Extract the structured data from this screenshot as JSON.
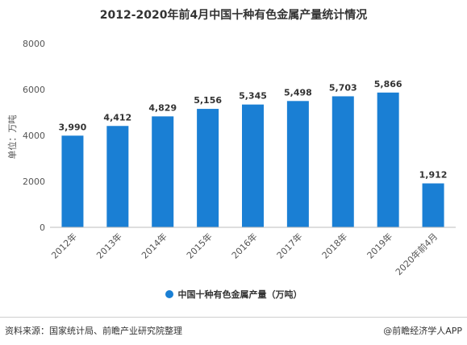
{
  "chart_data": {
    "type": "bar",
    "title": "2012-2020年前4月中国十种有色金属产量统计情况",
    "ylabel": "单位：万吨",
    "categories": [
      "2012年",
      "2013年",
      "2014年",
      "2015年",
      "2016年",
      "2017年",
      "2018年",
      "2019年",
      "2020年前4月"
    ],
    "values": [
      3990,
      4412,
      4829,
      5156,
      5345,
      5498,
      5703,
      5866,
      1912
    ],
    "data_labels": [
      "3,990",
      "4,412",
      "4,829",
      "5,156",
      "5,345",
      "5,498",
      "5,703",
      "5,866",
      "1,912"
    ],
    "yticks": [
      0,
      2000,
      4000,
      6000,
      8000
    ],
    "ylim": [
      0,
      8000
    ],
    "grid": false,
    "legend_position": "bottom",
    "series": [
      {
        "name": "中国十种有色金属产量（万吨）",
        "color": "#1a7fd4"
      }
    ]
  },
  "footer": {
    "source": "资料来源：国家统计局、前瞻产业研究院整理",
    "brand": "@前瞻经济学人APP"
  }
}
